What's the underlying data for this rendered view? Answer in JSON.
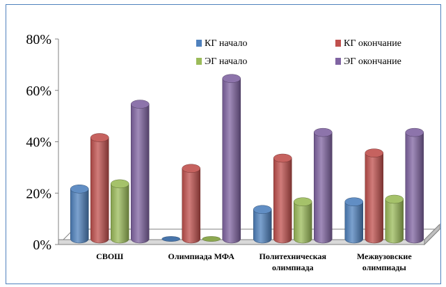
{
  "chart_data": {
    "type": "bar",
    "title": "",
    "xlabel": "",
    "ylabel": "",
    "ylim": [
      0,
      80
    ],
    "yticks": [
      "0%",
      "20%",
      "40%",
      "60%",
      "80%"
    ],
    "grid": false,
    "legend_position": "top-right",
    "categories": [
      [
        "СВОШ"
      ],
      [
        "Олимпиада МФА"
      ],
      [
        "Политехническая",
        "олимпиада"
      ],
      [
        "Межвузовские",
        "олимпиады"
      ]
    ],
    "series": [
      {
        "name": "КГ начало",
        "color": "#4f81bd",
        "values": [
          20,
          0,
          12,
          15
        ]
      },
      {
        "name": "КГ окончание",
        "color": "#c0504d",
        "values": [
          40,
          28,
          32,
          34
        ]
      },
      {
        "name": "ЭГ начало",
        "color": "#9bbb59",
        "values": [
          22,
          0,
          15,
          16
        ]
      },
      {
        "name": "ЭГ окончание",
        "color": "#8064a2",
        "values": [
          53,
          63,
          42,
          42
        ]
      }
    ]
  }
}
